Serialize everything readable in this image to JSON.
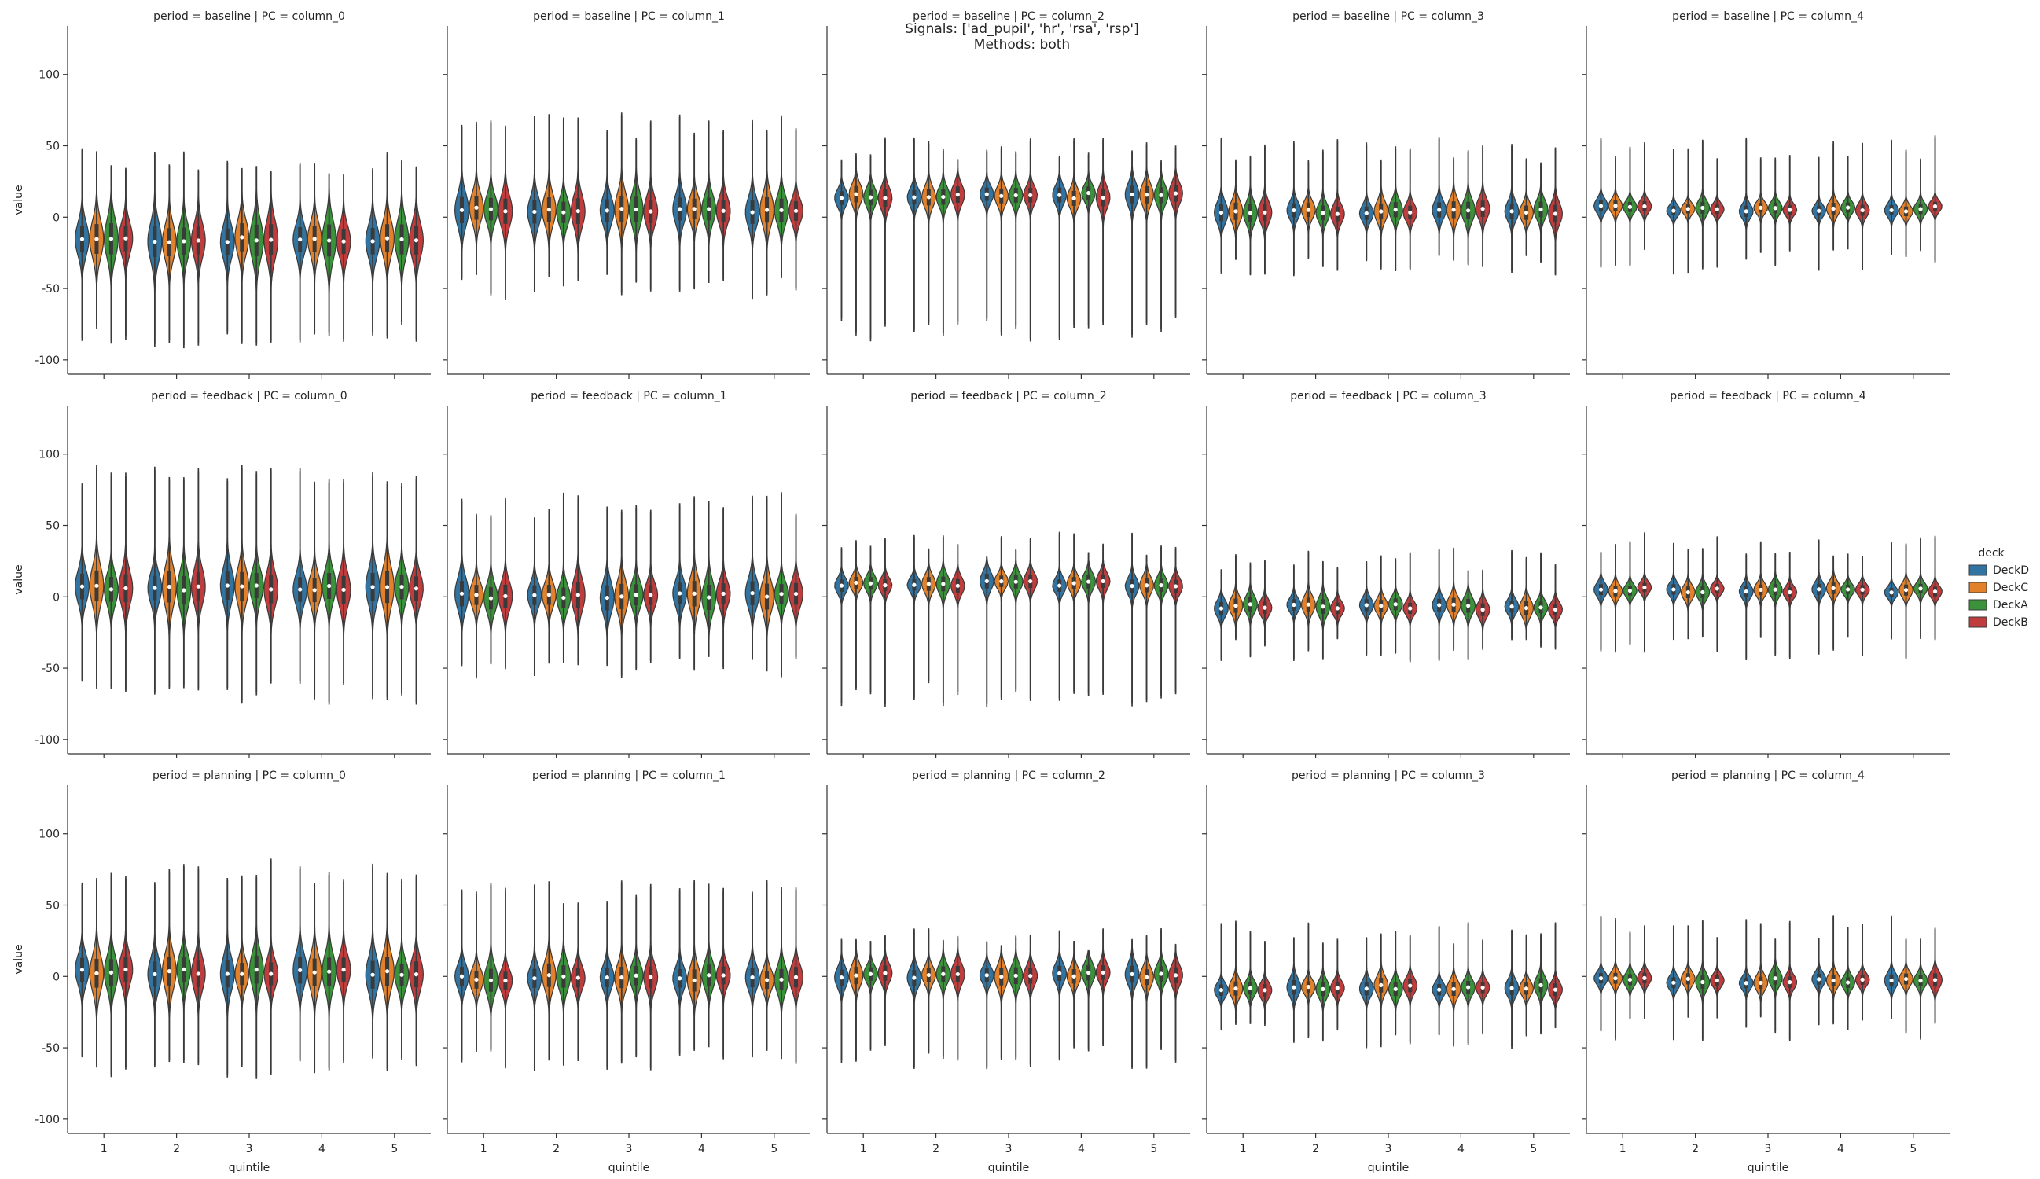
{
  "chart_data": {
    "type": "violin",
    "suptitle": [
      "Signals: ['ad_pupil', 'hr', 'rsa', 'rsp']",
      "Methods: both"
    ],
    "xlabel": "quintile",
    "ylabel": "value",
    "ylim": [
      -110,
      134
    ],
    "yticks": [
      -100,
      -50,
      0,
      50,
      100
    ],
    "x": [
      "1",
      "2",
      "3",
      "4",
      "5"
    ],
    "legend": {
      "title": "deck",
      "position": "right",
      "entries": [
        {
          "name": "DeckD",
          "color": "#3274a1"
        },
        {
          "name": "DeckC",
          "color": "#e1812c"
        },
        {
          "name": "DeckA",
          "color": "#3a923a"
        },
        {
          "name": "DeckB",
          "color": "#c03d3e"
        }
      ]
    },
    "rows": [
      "baseline",
      "feedback",
      "planning"
    ],
    "cols": [
      "column_0",
      "column_1",
      "column_2",
      "column_3",
      "column_4"
    ],
    "panels": [
      {
        "title": "period = baseline | PC = column_0",
        "median": -16,
        "spread": 22,
        "range": [
          -75,
          30
        ]
      },
      {
        "title": "period = baseline | PC = column_1",
        "median": 5,
        "spread": 18,
        "range": [
          -40,
          55
        ]
      },
      {
        "title": "period = baseline | PC = column_2",
        "median": 15,
        "spread": 12,
        "range": [
          -70,
          38
        ]
      },
      {
        "title": "period = baseline | PC = column_3",
        "median": 4,
        "spread": 12,
        "range": [
          -26,
          38
        ]
      },
      {
        "title": "period = baseline | PC = column_4",
        "median": 6,
        "spread": 8,
        "range": [
          -22,
          40
        ]
      },
      {
        "title": "period = feedback | PC = column_0",
        "median": 6,
        "spread": 22,
        "range": [
          -58,
          75
        ]
      },
      {
        "title": "period = feedback | PC = column_1",
        "median": 1,
        "spread": 18,
        "range": [
          -40,
          55
        ]
      },
      {
        "title": "period = feedback | PC = column_2",
        "median": 9,
        "spread": 10,
        "range": [
          -60,
          28
        ]
      },
      {
        "title": "period = feedback | PC = column_3",
        "median": -7,
        "spread": 10,
        "range": [
          -28,
          18
        ]
      },
      {
        "title": "period = feedback | PC = column_4",
        "median": 5,
        "spread": 8,
        "range": [
          -28,
          28
        ]
      },
      {
        "title": "period = planning | PC = column_0",
        "median": 3,
        "spread": 20,
        "range": [
          -55,
          65
        ]
      },
      {
        "title": "period = planning | PC = column_1",
        "median": -1,
        "spread": 16,
        "range": [
          -48,
          50
        ]
      },
      {
        "title": "period = planning | PC = column_2",
        "median": 1,
        "spread": 12,
        "range": [
          -48,
          18
        ]
      },
      {
        "title": "period = planning | PC = column_3",
        "median": -8,
        "spread": 10,
        "range": [
          -33,
          22
        ]
      },
      {
        "title": "period = planning | PC = column_4",
        "median": -3,
        "spread": 9,
        "range": [
          -28,
          26
        ]
      }
    ]
  }
}
